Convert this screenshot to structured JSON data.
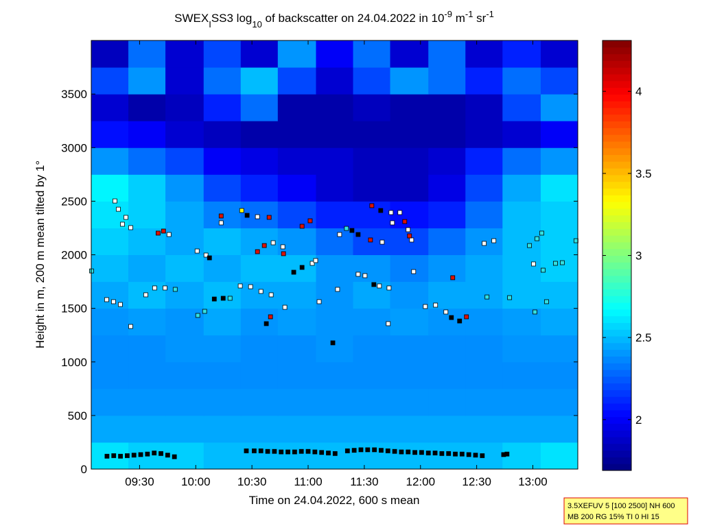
{
  "chart_data": {
    "type": "heatmap",
    "title_parts": [
      {
        "text": "SWEX",
        "shift": null
      },
      {
        "text": "I",
        "shift": "sub"
      },
      {
        "text": "SS3 log",
        "shift": null
      },
      {
        "text": "10",
        "shift": "sub"
      },
      {
        "text": " of backscatter on 24.04.2022 in 10",
        "shift": null
      },
      {
        "text": "-9",
        "shift": "sup"
      },
      {
        "text": " m",
        "shift": null
      },
      {
        "text": "-1",
        "shift": "sup"
      },
      {
        "text": " sr",
        "shift": null
      },
      {
        "text": "-1",
        "shift": "sup"
      }
    ],
    "xlabel": "Time on 24.04.2022, 600 s mean",
    "ylabel": "Height in m, 200 m mean tilted by 1°",
    "info_lines": [
      "3.5XEFUV 5 [100 2500] NH 600",
      "MB 200 RG 15% TI 0 HI 15"
    ],
    "xlim": [
      9.07,
      13.4
    ],
    "xticks": [
      {
        "value": 9.5,
        "label": "09:30"
      },
      {
        "value": 10,
        "label": "10:00"
      },
      {
        "value": 10.5,
        "label": "10:30"
      },
      {
        "value": 11,
        "label": "11:00"
      },
      {
        "value": 11.5,
        "label": "11:30"
      },
      {
        "value": 12,
        "label": "12:00"
      },
      {
        "value": 12.5,
        "label": "12:30"
      },
      {
        "value": 13,
        "label": "13:00"
      }
    ],
    "ylim": [
      0,
      4000
    ],
    "yticks": [
      0,
      500,
      1000,
      1500,
      2000,
      2500,
      3000,
      3500
    ],
    "colormap": "jet",
    "clim": [
      1.69,
      4.31
    ],
    "cticks": [
      2,
      2.5,
      3,
      3.5,
      4
    ],
    "x_edges": [
      9.07,
      9.4,
      9.73,
      10.07,
      10.4,
      10.73,
      11.07,
      11.4,
      11.73,
      12.07,
      12.4,
      12.73,
      13.07,
      13.4
    ],
    "y_edges": [
      0,
      250,
      500,
      750,
      1000,
      1250,
      1500,
      1750,
      2000,
      2250,
      2500,
      2750,
      3000,
      3250,
      3500,
      3750,
      4000
    ],
    "z": [
      [
        2.6,
        2.55,
        2.55,
        2.5,
        2.5,
        2.5,
        2.5,
        2.5,
        2.5,
        2.5,
        2.5,
        2.55,
        2.6
      ],
      [
        2.45,
        2.45,
        2.45,
        2.45,
        2.45,
        2.45,
        2.45,
        2.45,
        2.45,
        2.45,
        2.45,
        2.45,
        2.45
      ],
      [
        2.4,
        2.4,
        2.4,
        2.4,
        2.4,
        2.4,
        2.4,
        2.4,
        2.4,
        2.4,
        2.4,
        2.4,
        2.4
      ],
      [
        2.38,
        2.38,
        2.38,
        2.38,
        2.38,
        2.38,
        2.38,
        2.38,
        2.38,
        2.38,
        2.38,
        2.38,
        2.38
      ],
      [
        2.38,
        2.38,
        2.4,
        2.4,
        2.38,
        2.38,
        2.4,
        2.38,
        2.38,
        2.38,
        2.38,
        2.4,
        2.4
      ],
      [
        2.4,
        2.42,
        2.4,
        2.45,
        2.4,
        2.42,
        2.4,
        2.4,
        2.42,
        2.4,
        2.4,
        2.42,
        2.45
      ],
      [
        2.45,
        2.5,
        2.45,
        2.5,
        2.45,
        2.45,
        2.4,
        2.45,
        2.4,
        2.45,
        2.45,
        2.5,
        2.5
      ],
      [
        2.5,
        2.45,
        2.5,
        2.45,
        2.5,
        2.5,
        2.4,
        2.4,
        2.35,
        2.4,
        2.45,
        2.5,
        2.55
      ],
      [
        2.55,
        2.5,
        2.45,
        2.5,
        2.45,
        2.4,
        2.3,
        2.2,
        2.2,
        2.3,
        2.4,
        2.5,
        2.55
      ],
      [
        2.6,
        2.55,
        2.45,
        2.35,
        2.3,
        2.2,
        2.1,
        2.1,
        2.05,
        2.1,
        2.3,
        2.5,
        2.55
      ],
      [
        2.65,
        2.55,
        2.4,
        2.2,
        2.1,
        2.0,
        1.9,
        1.85,
        1.85,
        1.95,
        2.2,
        2.45,
        2.6
      ],
      [
        2.4,
        2.3,
        2.2,
        2.0,
        1.95,
        1.9,
        1.9,
        1.85,
        1.85,
        1.9,
        2.1,
        2.3,
        2.4
      ],
      [
        2.05,
        2.0,
        1.9,
        1.85,
        1.8,
        1.8,
        1.8,
        1.8,
        1.8,
        1.8,
        1.85,
        1.9,
        2.0
      ],
      [
        1.9,
        1.8,
        1.85,
        2.1,
        2.3,
        1.8,
        1.8,
        1.85,
        1.8,
        1.8,
        1.85,
        2.2,
        2.4
      ],
      [
        2.2,
        2.4,
        1.9,
        2.3,
        2.5,
        2.2,
        1.9,
        2.2,
        2.4,
        2.3,
        2.1,
        2.3,
        2.2
      ],
      [
        1.85,
        2.3,
        1.9,
        2.2,
        1.9,
        2.4,
        2.0,
        2.3,
        1.9,
        2.3,
        1.9,
        2.1,
        1.9
      ]
    ],
    "series": [
      {
        "name": "cloud-base",
        "marker": "square",
        "x": [
          9.073,
          9.28,
          9.311,
          9.378,
          9.348,
          9.421,
          9.207,
          9.268,
          9.329,
          9.421,
          9.555,
          9.634,
          9.726,
          9.817,
          9.665,
          9.713,
          9.762,
          10.012,
          10.091,
          10.122,
          10.018,
          10.079,
          10.165,
          10.244,
          10.305,
          10.226,
          10.226,
          10.396,
          10.488,
          10.58,
          10.671,
          10.409,
          10.457,
          10.549,
          10.653,
          10.549,
          10.61,
          10.689,
          10.775,
          10.781,
          10.628,
          10.665,
          10.793,
          10.872,
          10.946,
          11.037,
          11.067,
          10.946,
          11.018,
          11.098,
          11.22,
          11.262,
          11.28,
          11.341,
          11.39,
          11.445,
          11.445,
          11.506,
          11.585,
          11.634,
          11.72,
          11.567,
          11.646,
          11.738,
          11.817,
          11.555,
          11.659,
          11.75,
          11.86,
          11.89,
          11.921,
          11.902,
          11.939,
          11.713,
          12.043,
          12.134,
          12.226,
          12.287,
          12.275,
          12.348,
          12.409,
          12.567,
          12.653,
          12.592,
          12.793,
          12.97,
          13.037,
          13.079,
          13.006,
          13.091,
          13.201,
          13.262,
          13.122,
          13.018,
          13.384
        ],
        "values": [
          1849,
          2502,
          2425,
          2349,
          2285,
          2253,
          1581,
          1562,
          1536,
          1331,
          1626,
          1690,
          1690,
          1677,
          2202,
          2221,
          2189,
          2035,
          1997,
          1971,
          1434,
          1472,
          1587,
          1594,
          1594,
          2362,
          2298,
          1709,
          1702,
          1658,
          1626,
          2413,
          2368,
          2355,
          2349,
          2029,
          2086,
          2112,
          2074,
          2010,
          1357,
          1421,
          1510,
          1837,
          1882,
          1920,
          1946,
          2266,
          2317,
          1562,
          1178,
          1677,
          2189,
          2246,
          2227,
          2189,
          1818,
          1805,
          1722,
          1709,
          1690,
          2458,
          2413,
          2394,
          2394,
          2138,
          2118,
          2298,
          2310,
          2234,
          2138,
          2176,
          1843,
          1357,
          1517,
          1530,
          1466,
          1786,
          1414,
          1382,
          1421,
          2106,
          2131,
          1606,
          1600,
          2086,
          2150,
          2202,
          1914,
          1856,
          1920,
          1926,
          1562,
          1466,
          2131
        ],
        "colors": [
          "#33e0e0",
          "#ffffff",
          "#ffffff",
          "#ffffff",
          "#ffffff",
          "#ffffff",
          "#ffffff",
          "#ffffff",
          "#ffffff",
          "#ffffff",
          "#ffffff",
          "#ffffff",
          "#ffffff",
          "#33e0e0",
          "#dd1100",
          "#dd1100",
          "#ffffff",
          "#ffffff",
          "#ffffff",
          "#000000",
          "#33e0e0",
          "#33e0e0",
          "#000000",
          "#000000",
          "#33e0e0",
          "#dd1100",
          "#ffffff",
          "#ffffff",
          "#ffffff",
          "#ffffff",
          "#ffffff",
          "#ffff00",
          "#000000",
          "#ffffff",
          "#dd1100",
          "#dd1100",
          "#dd1100",
          "#ffffff",
          "#ffffff",
          "#dd1100",
          "#000000",
          "#dd1100",
          "#ffffff",
          "#000000",
          "#000000",
          "#ffffff",
          "#ffffff",
          "#dd1100",
          "#dd1100",
          "#ffffff",
          "#000000",
          "#ffffff",
          "#ffffff",
          "#33e0e0",
          "#000000",
          "#000000",
          "#ffffff",
          "#ffffff",
          "#000000",
          "#ffffff",
          "#ffffff",
          "#dd1100",
          "#000000",
          "#ffffff",
          "#ffffff",
          "#dd1100",
          "#ffffff",
          "#ffffff",
          "#dd1100",
          "#ffffff",
          "#ffffff",
          "#dd1100",
          "#ffffff",
          "#ffffff",
          "#ffffff",
          "#ffffff",
          "#ffffff",
          "#dd1100",
          "#000000",
          "#000000",
          "#dd1100",
          "#ffffff",
          "#ffffff",
          "#33e0e0",
          "#33e0e0",
          "#33e0e0",
          "#33e0e0",
          "#33e0e0",
          "#ffffff",
          "#33e0e0",
          "#33e0e0",
          "#33e0e0",
          "#33e0e0",
          "#33e0e0",
          "#33e0e0"
        ]
      },
      {
        "name": "surface-layer",
        "marker": "square",
        "color": "#000000",
        "x": [
          9.21,
          9.27,
          9.33,
          9.39,
          9.45,
          9.51,
          9.57,
          9.63,
          9.69,
          9.75,
          9.81,
          10.45,
          10.52,
          10.58,
          10.64,
          10.7,
          10.76,
          10.82,
          10.88,
          10.94,
          11.0,
          11.06,
          11.12,
          11.18,
          11.24,
          11.35,
          11.41,
          11.47,
          11.53,
          11.59,
          11.65,
          11.71,
          11.77,
          11.83,
          11.89,
          11.95,
          12.01,
          12.07,
          12.13,
          12.19,
          12.25,
          12.31,
          12.37,
          12.43,
          12.49,
          12.55,
          12.74,
          12.77
        ],
        "values": [
          120,
          125,
          120,
          125,
          130,
          135,
          140,
          150,
          145,
          130,
          115,
          170,
          170,
          170,
          165,
          165,
          160,
          160,
          160,
          165,
          165,
          160,
          155,
          150,
          145,
          170,
          175,
          180,
          180,
          180,
          175,
          170,
          165,
          160,
          160,
          155,
          155,
          150,
          150,
          145,
          145,
          140,
          140,
          135,
          130,
          125,
          135,
          140
        ]
      }
    ]
  }
}
